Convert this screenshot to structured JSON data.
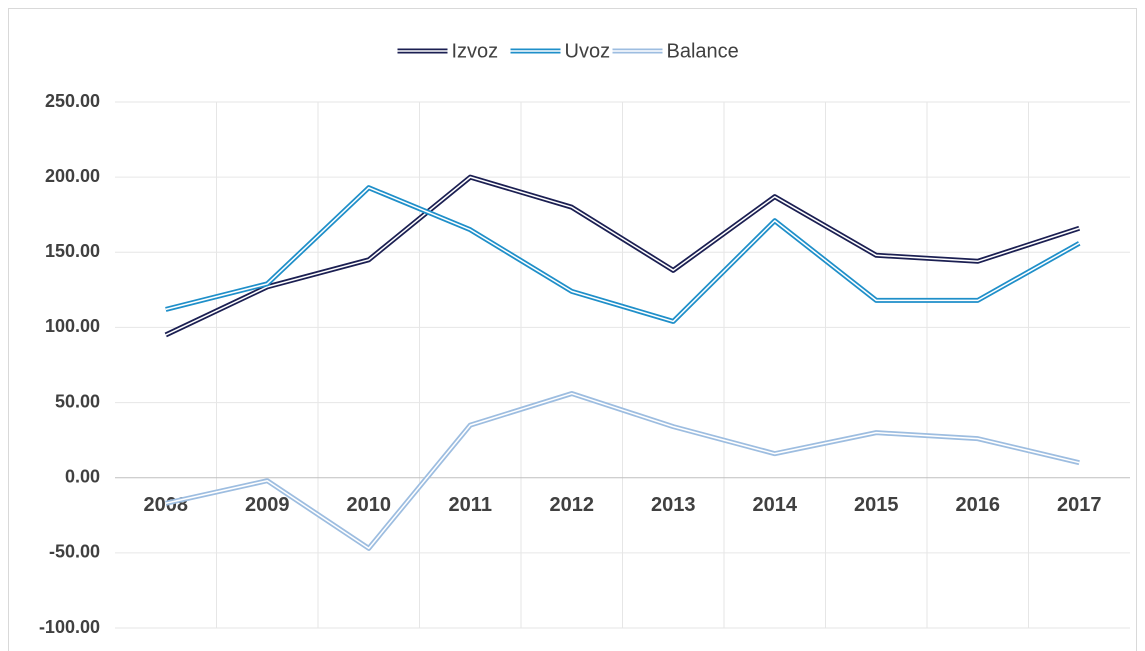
{
  "chart_data": {
    "type": "line",
    "categories": [
      "2008",
      "2009",
      "2010",
      "2011",
      "2012",
      "2013",
      "2014",
      "2015",
      "2016",
      "2017"
    ],
    "series": [
      {
        "name": "Izvoz",
        "color": "#1b1f52",
        "values": [
          95,
          127,
          145,
          200,
          180,
          138,
          187,
          148,
          144,
          166
        ]
      },
      {
        "name": "Uvoz",
        "color": "#1f8fc9",
        "values": [
          112,
          129,
          193,
          165,
          124,
          104,
          171,
          118,
          118,
          156
        ]
      },
      {
        "name": "Balance",
        "color": "#9dbde0",
        "values": [
          -17,
          -2,
          -47,
          35,
          56,
          34,
          16,
          30,
          26,
          10
        ]
      }
    ],
    "ylim": [
      -100,
      250
    ],
    "yticks": [
      {
        "value": -100,
        "label": "-100.00"
      },
      {
        "value": -50,
        "label": "-50.00"
      },
      {
        "value": 0,
        "label": "0.00"
      },
      {
        "value": 50,
        "label": "50.00"
      },
      {
        "value": 100,
        "label": "100.00"
      },
      {
        "value": 150,
        "label": "150.00"
      },
      {
        "value": 200,
        "label": "200.00"
      },
      {
        "value": 250,
        "label": "250.00"
      }
    ],
    "grid": true,
    "legend": "top"
  }
}
